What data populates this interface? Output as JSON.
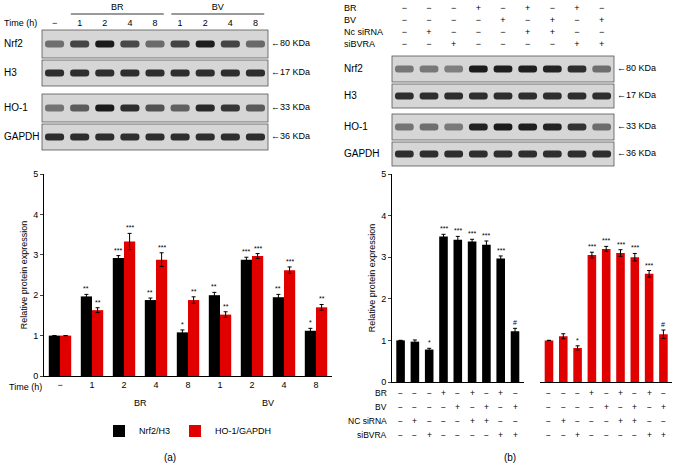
{
  "chart_data": [
    {
      "type": "bar",
      "panel": "(a)",
      "ylabel": "Relative protein expression",
      "xlabel": "Time (h)",
      "categories": [
        "−",
        "1",
        "2",
        "4",
        "8",
        "1",
        "2",
        "4",
        "8"
      ],
      "groups": [
        {
          "label": "BR",
          "from": 1,
          "to": 4
        },
        {
          "label": "BV",
          "from": 5,
          "to": 8
        }
      ],
      "ylim": [
        0,
        5
      ],
      "yticks": [
        0,
        1,
        2,
        3,
        4,
        5
      ],
      "grid": false,
      "legend": "bottom",
      "series": [
        {
          "name": "Nrf2/H3",
          "color": "#000000",
          "values": [
            1,
            1.97,
            2.92,
            1.88,
            1.08,
            2.0,
            2.88,
            1.95,
            1.12
          ],
          "errors": [
            0,
            0.05,
            0.06,
            0.05,
            0.06,
            0.07,
            0.06,
            0.07,
            0.06
          ],
          "significance": [
            null,
            "**",
            "***",
            "**",
            "*",
            "**",
            "***",
            "**",
            "*"
          ]
        },
        {
          "name": "HO-1/GAPDH",
          "color": "#e00000",
          "values": [
            1,
            1.63,
            3.33,
            2.88,
            1.88,
            1.52,
            2.97,
            2.62,
            1.7
          ],
          "errors": [
            0,
            0.06,
            0.2,
            0.17,
            0.08,
            0.07,
            0.06,
            0.08,
            0.07
          ],
          "significance": [
            null,
            "**",
            "***",
            "***",
            "**",
            "**",
            "***",
            "***",
            "**"
          ]
        }
      ]
    },
    {
      "type": "bar",
      "panel": "(b)",
      "ylabel": "Relative protein expression",
      "ylim": [
        0,
        5
      ],
      "yticks": [
        0,
        1,
        2,
        3,
        4,
        5
      ],
      "grid": false,
      "tick_labels": "y",
      "conditions": [
        {
          "label": "BR",
          "signs": [
            "−",
            "−",
            "−",
            "+",
            "−",
            "+",
            "−",
            "+",
            "−"
          ]
        },
        {
          "label": "BV",
          "signs": [
            "−",
            "−",
            "−",
            "−",
            "+",
            "−",
            "+",
            "−",
            "+"
          ]
        },
        {
          "label": "NC siRNA",
          "signs": [
            "−",
            "+",
            "−",
            "−",
            "−",
            "+",
            "+",
            "−",
            "−"
          ]
        },
        {
          "label": "siBVRA",
          "signs": [
            "−",
            "−",
            "+",
            "−",
            "−",
            "−",
            "−",
            "+",
            "+"
          ]
        }
      ],
      "series": [
        {
          "color": "#000000",
          "values": [
            1,
            0.97,
            0.78,
            3.5,
            3.42,
            3.38,
            3.3,
            2.97,
            1.22
          ],
          "errors": [
            0,
            0.04,
            0.03,
            0.05,
            0.08,
            0.05,
            0.09,
            0.06,
            0.07
          ],
          "significance": [
            null,
            null,
            "*",
            "***",
            "***",
            "***",
            "***",
            "***",
            "#"
          ]
        },
        {
          "color": "#e00000",
          "values": [
            1,
            1.1,
            0.82,
            3.05,
            3.2,
            3.1,
            3.0,
            2.6,
            1.15
          ],
          "errors": [
            0,
            0.06,
            0.05,
            0.07,
            0.06,
            0.08,
            0.09,
            0.08,
            0.1
          ],
          "significance": [
            null,
            null,
            "*",
            "***",
            "***",
            "***",
            "***",
            "***",
            "#"
          ]
        }
      ]
    }
  ],
  "blots": [
    {
      "header": {
        "row_label": "Time (h)",
        "lanes": [
          "−",
          "1",
          "2",
          "4",
          "8",
          "1",
          "2",
          "4",
          "8"
        ],
        "groups": [
          {
            "label": "BR",
            "from": 1,
            "to": 4
          },
          {
            "label": "BV",
            "from": 5,
            "to": 8
          }
        ]
      },
      "rows": [
        {
          "label": "Nrf2",
          "size": "←80 KDa"
        },
        {
          "label": "H3",
          "size": "←17 KDa"
        },
        {
          "label": "HO-1",
          "size": "←33 KDa"
        },
        {
          "label": "GAPDH",
          "size": "←36 KDa"
        }
      ]
    },
    {
      "header": {
        "conditions": [
          {
            "label": "BR",
            "signs": [
              "−",
              "−",
              "−",
              "+",
              "−",
              "+",
              "−",
              "+",
              "−"
            ]
          },
          {
            "label": "BV",
            "signs": [
              "−",
              "−",
              "−",
              "−",
              "+",
              "−",
              "+",
              "−",
              "+"
            ]
          },
          {
            "label": "Nc siRNA",
            "signs": [
              "−",
              "+",
              "−",
              "−",
              "−",
              "+",
              "+",
              "−",
              "−"
            ]
          },
          {
            "label": "siBVRA",
            "signs": [
              "−",
              "−",
              "+",
              "−",
              "−",
              "−",
              "−",
              "+",
              "+"
            ]
          }
        ]
      },
      "rows": [
        {
          "label": "Nrf2",
          "size": "←80 KDa"
        },
        {
          "label": "H3",
          "size": "←17 KDa"
        },
        {
          "label": "HO-1",
          "size": "←33 KDa"
        },
        {
          "label": "GAPDH",
          "size": "←36 KDa"
        }
      ]
    }
  ]
}
